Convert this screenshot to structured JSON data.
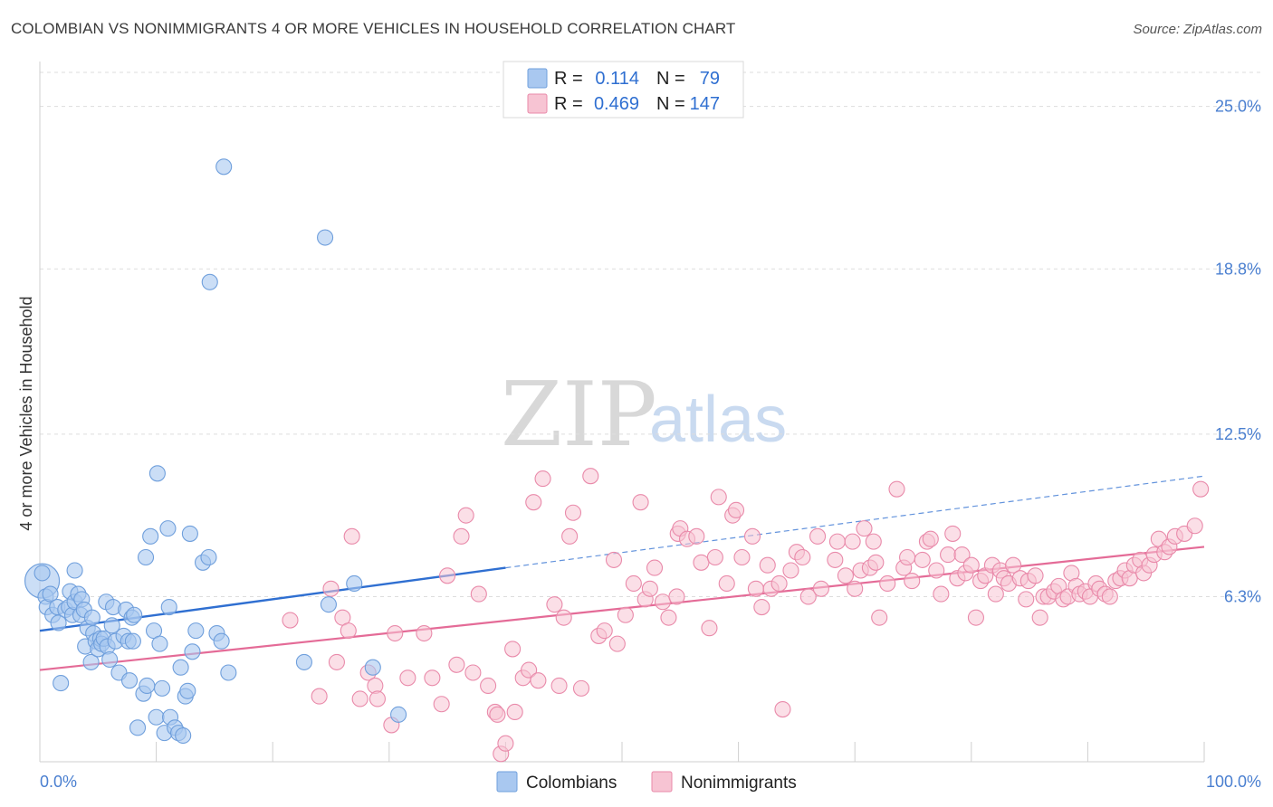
{
  "title": "COLOMBIAN VS NONIMMIGRANTS 4 OR MORE VEHICLES IN HOUSEHOLD CORRELATION CHART",
  "source": "Source: ZipAtlas.com",
  "watermark": {
    "zip": "ZIP",
    "atlas": "atlas"
  },
  "legend_top": {
    "rows": [
      {
        "r_label": "R =",
        "r_value": "0.114",
        "n_label": "N =",
        "n_value": "79",
        "color": "#a9c8f0"
      },
      {
        "r_label": "R =",
        "r_value": "0.469",
        "n_label": "N =",
        "n_value": "147",
        "color": "#f5b8cb"
      }
    ]
  },
  "legend_bottom": {
    "items": [
      {
        "label": "Colombians",
        "color": "#a9c8f0"
      },
      {
        "label": "Nonimmigrants",
        "color": "#f5b8cb"
      }
    ]
  },
  "colors": {
    "blue_fill": "#a9c8f0",
    "blue_stroke": "#6f9fdc",
    "blue_line": "#2f6fd1",
    "pink_fill": "#f7c4d3",
    "pink_stroke": "#e98aaa",
    "pink_line": "#e46b97",
    "tick_text": "#4a7fd0",
    "grid": "#dddddd"
  },
  "chart_data": {
    "type": "scatter",
    "title": "COLOMBIAN VS NONIMMIGRANTS 4 OR MORE VEHICLES IN HOUSEHOLD CORRELATION CHART",
    "xlabel": "",
    "ylabel": "4 or more Vehicles in Household",
    "xlim": [
      0,
      100
    ],
    "ylim": [
      0,
      26.3
    ],
    "x_tick_labels": [
      "0.0%",
      "100.0%"
    ],
    "y_ticks": [
      6.3,
      12.5,
      18.8,
      25.0
    ],
    "y_tick_labels": [
      "6.3%",
      "12.5%",
      "18.8%",
      "25.0%"
    ],
    "grid": true,
    "legend_position": "top-center",
    "series": [
      {
        "name": "Colombians",
        "color": "#a9c8f0",
        "trend": {
          "x0": 0,
          "y0": 5.0,
          "x1": 40,
          "y1": 7.4,
          "dashed_to_x": 100,
          "dashed_to_y": 10.9
        },
        "points": [
          [
            0.2,
            7.2
          ],
          [
            0.5,
            6.3
          ],
          [
            0.6,
            5.9
          ],
          [
            0.9,
            6.4
          ],
          [
            1.1,
            5.6
          ],
          [
            1.5,
            5.9
          ],
          [
            1.6,
            5.3
          ],
          [
            1.8,
            3.0
          ],
          [
            2.2,
            5.8
          ],
          [
            2.5,
            5.9
          ],
          [
            2.6,
            6.5
          ],
          [
            2.8,
            5.6
          ],
          [
            3.0,
            6.1
          ],
          [
            3.0,
            7.3
          ],
          [
            3.3,
            6.4
          ],
          [
            3.5,
            5.6
          ],
          [
            3.6,
            6.2
          ],
          [
            3.8,
            5.8
          ],
          [
            3.9,
            4.4
          ],
          [
            4.1,
            5.1
          ],
          [
            4.4,
            3.8
          ],
          [
            4.5,
            5.5
          ],
          [
            4.6,
            4.9
          ],
          [
            4.8,
            4.6
          ],
          [
            5.0,
            4.3
          ],
          [
            5.2,
            4.7
          ],
          [
            5.3,
            4.5
          ],
          [
            5.5,
            4.7
          ],
          [
            5.7,
            6.1
          ],
          [
            5.8,
            4.4
          ],
          [
            6.0,
            3.9
          ],
          [
            6.2,
            5.2
          ],
          [
            6.3,
            5.9
          ],
          [
            6.5,
            4.6
          ],
          [
            6.8,
            3.4
          ],
          [
            7.2,
            4.8
          ],
          [
            7.4,
            5.8
          ],
          [
            7.6,
            4.6
          ],
          [
            7.7,
            3.1
          ],
          [
            7.9,
            5.5
          ],
          [
            8.0,
            4.6
          ],
          [
            8.1,
            5.6
          ],
          [
            8.4,
            1.3
          ],
          [
            8.9,
            2.6
          ],
          [
            9.1,
            7.8
          ],
          [
            9.2,
            2.9
          ],
          [
            9.5,
            8.6
          ],
          [
            9.8,
            5.0
          ],
          [
            10.0,
            1.7
          ],
          [
            10.1,
            11.0
          ],
          [
            10.3,
            4.5
          ],
          [
            10.5,
            2.8
          ],
          [
            10.7,
            1.1
          ],
          [
            11.0,
            8.9
          ],
          [
            11.1,
            5.9
          ],
          [
            11.2,
            1.7
          ],
          [
            11.6,
            1.3
          ],
          [
            11.9,
            1.1
          ],
          [
            12.1,
            3.6
          ],
          [
            12.3,
            1.0
          ],
          [
            12.5,
            2.5
          ],
          [
            12.7,
            2.7
          ],
          [
            12.9,
            8.7
          ],
          [
            13.1,
            4.2
          ],
          [
            13.4,
            5.0
          ],
          [
            14.0,
            7.6
          ],
          [
            14.5,
            7.8
          ],
          [
            14.6,
            18.3
          ],
          [
            15.2,
            4.9
          ],
          [
            15.6,
            4.6
          ],
          [
            15.8,
            22.7
          ],
          [
            16.2,
            3.4
          ],
          [
            22.7,
            3.8
          ],
          [
            24.5,
            20.0
          ],
          [
            24.8,
            6.0
          ],
          [
            27.0,
            6.8
          ],
          [
            28.6,
            3.6
          ],
          [
            30.8,
            1.8
          ]
        ],
        "big_point": [
          0.2,
          6.9
        ]
      },
      {
        "name": "Nonimmigrants",
        "color": "#f7c4d3",
        "trend": {
          "x0": 0,
          "y0": 3.5,
          "x1": 100,
          "y1": 8.2
        },
        "points": [
          [
            21.5,
            5.4
          ],
          [
            24.0,
            2.5
          ],
          [
            25.0,
            6.6
          ],
          [
            25.5,
            3.8
          ],
          [
            26.0,
            5.5
          ],
          [
            26.5,
            5.0
          ],
          [
            26.8,
            8.6
          ],
          [
            27.5,
            2.4
          ],
          [
            28.2,
            3.4
          ],
          [
            28.8,
            2.9
          ],
          [
            29.0,
            2.4
          ],
          [
            30.2,
            1.4
          ],
          [
            30.5,
            4.9
          ],
          [
            31.6,
            3.2
          ],
          [
            33.0,
            4.9
          ],
          [
            33.7,
            3.2
          ],
          [
            34.5,
            2.2
          ],
          [
            35.0,
            7.1
          ],
          [
            35.8,
            3.7
          ],
          [
            36.2,
            8.6
          ],
          [
            36.6,
            9.4
          ],
          [
            37.2,
            3.4
          ],
          [
            37.7,
            6.4
          ],
          [
            38.5,
            2.9
          ],
          [
            39.1,
            1.9
          ],
          [
            39.3,
            1.8
          ],
          [
            39.6,
            0.3
          ],
          [
            40.0,
            0.7
          ],
          [
            40.6,
            4.3
          ],
          [
            40.8,
            1.9
          ],
          [
            41.5,
            3.2
          ],
          [
            42.0,
            3.5
          ],
          [
            42.4,
            9.9
          ],
          [
            42.8,
            3.1
          ],
          [
            43.2,
            10.8
          ],
          [
            44.2,
            6.0
          ],
          [
            44.6,
            2.9
          ],
          [
            45.0,
            5.5
          ],
          [
            45.5,
            8.6
          ],
          [
            45.8,
            9.5
          ],
          [
            46.5,
            2.8
          ],
          [
            47.3,
            10.9
          ],
          [
            48.0,
            4.8
          ],
          [
            48.5,
            5.0
          ],
          [
            49.3,
            7.7
          ],
          [
            49.6,
            4.5
          ],
          [
            50.3,
            5.6
          ],
          [
            51.0,
            6.8
          ],
          [
            51.6,
            9.9
          ],
          [
            52.0,
            6.2
          ],
          [
            52.4,
            6.6
          ],
          [
            52.8,
            7.4
          ],
          [
            53.5,
            6.1
          ],
          [
            54.0,
            5.5
          ],
          [
            54.7,
            6.3
          ],
          [
            54.8,
            8.7
          ],
          [
            55.0,
            8.9
          ],
          [
            55.6,
            8.5
          ],
          [
            56.4,
            8.6
          ],
          [
            56.8,
            7.6
          ],
          [
            57.5,
            5.1
          ],
          [
            58.0,
            7.8
          ],
          [
            58.3,
            10.1
          ],
          [
            59.0,
            6.8
          ],
          [
            59.5,
            9.4
          ],
          [
            59.8,
            9.6
          ],
          [
            60.3,
            7.8
          ],
          [
            61.2,
            8.6
          ],
          [
            61.5,
            6.6
          ],
          [
            62.0,
            5.9
          ],
          [
            62.5,
            7.5
          ],
          [
            62.8,
            6.6
          ],
          [
            63.5,
            6.8
          ],
          [
            63.8,
            2.0
          ],
          [
            64.5,
            7.3
          ],
          [
            65.0,
            8.0
          ],
          [
            65.5,
            7.8
          ],
          [
            66.0,
            6.3
          ],
          [
            66.8,
            8.6
          ],
          [
            67.1,
            6.6
          ],
          [
            68.3,
            7.7
          ],
          [
            68.5,
            8.4
          ],
          [
            69.2,
            7.1
          ],
          [
            69.8,
            8.4
          ],
          [
            70.0,
            6.6
          ],
          [
            70.5,
            7.3
          ],
          [
            70.8,
            8.9
          ],
          [
            71.3,
            7.4
          ],
          [
            71.6,
            8.4
          ],
          [
            71.8,
            7.6
          ],
          [
            72.1,
            5.5
          ],
          [
            72.8,
            6.8
          ],
          [
            73.6,
            10.4
          ],
          [
            74.2,
            7.4
          ],
          [
            74.5,
            7.8
          ],
          [
            74.9,
            6.9
          ],
          [
            75.8,
            7.7
          ],
          [
            76.2,
            8.4
          ],
          [
            76.5,
            8.5
          ],
          [
            77.0,
            7.3
          ],
          [
            77.4,
            6.4
          ],
          [
            78.0,
            7.9
          ],
          [
            78.4,
            8.7
          ],
          [
            78.8,
            7.0
          ],
          [
            79.2,
            7.9
          ],
          [
            79.5,
            7.2
          ],
          [
            80.0,
            7.5
          ],
          [
            80.4,
            5.5
          ],
          [
            80.8,
            6.9
          ],
          [
            81.2,
            7.1
          ],
          [
            81.8,
            7.5
          ],
          [
            82.1,
            6.4
          ],
          [
            82.5,
            7.3
          ],
          [
            82.8,
            7.0
          ],
          [
            83.2,
            6.8
          ],
          [
            83.6,
            7.5
          ],
          [
            84.2,
            7.0
          ],
          [
            84.7,
            6.2
          ],
          [
            84.9,
            6.9
          ],
          [
            85.5,
            7.1
          ],
          [
            85.9,
            5.5
          ],
          [
            86.2,
            6.3
          ],
          [
            86.6,
            6.3
          ],
          [
            87.1,
            6.5
          ],
          [
            87.5,
            6.7
          ],
          [
            87.9,
            6.2
          ],
          [
            88.3,
            6.3
          ],
          [
            88.6,
            7.2
          ],
          [
            89.0,
            6.7
          ],
          [
            89.3,
            6.4
          ],
          [
            89.8,
            6.5
          ],
          [
            90.2,
            6.3
          ],
          [
            90.7,
            6.8
          ],
          [
            91.0,
            6.6
          ],
          [
            91.5,
            6.4
          ],
          [
            91.9,
            6.3
          ],
          [
            92.4,
            6.9
          ],
          [
            92.8,
            7.0
          ],
          [
            93.2,
            7.3
          ],
          [
            93.6,
            7.0
          ],
          [
            94.0,
            7.5
          ],
          [
            94.5,
            7.7
          ],
          [
            94.8,
            7.2
          ],
          [
            95.3,
            7.5
          ],
          [
            95.7,
            7.9
          ],
          [
            96.1,
            8.5
          ],
          [
            96.6,
            8.0
          ],
          [
            97.0,
            8.2
          ],
          [
            97.5,
            8.6
          ],
          [
            98.3,
            8.7
          ],
          [
            99.2,
            9.0
          ],
          [
            99.7,
            10.4
          ]
        ]
      }
    ]
  }
}
